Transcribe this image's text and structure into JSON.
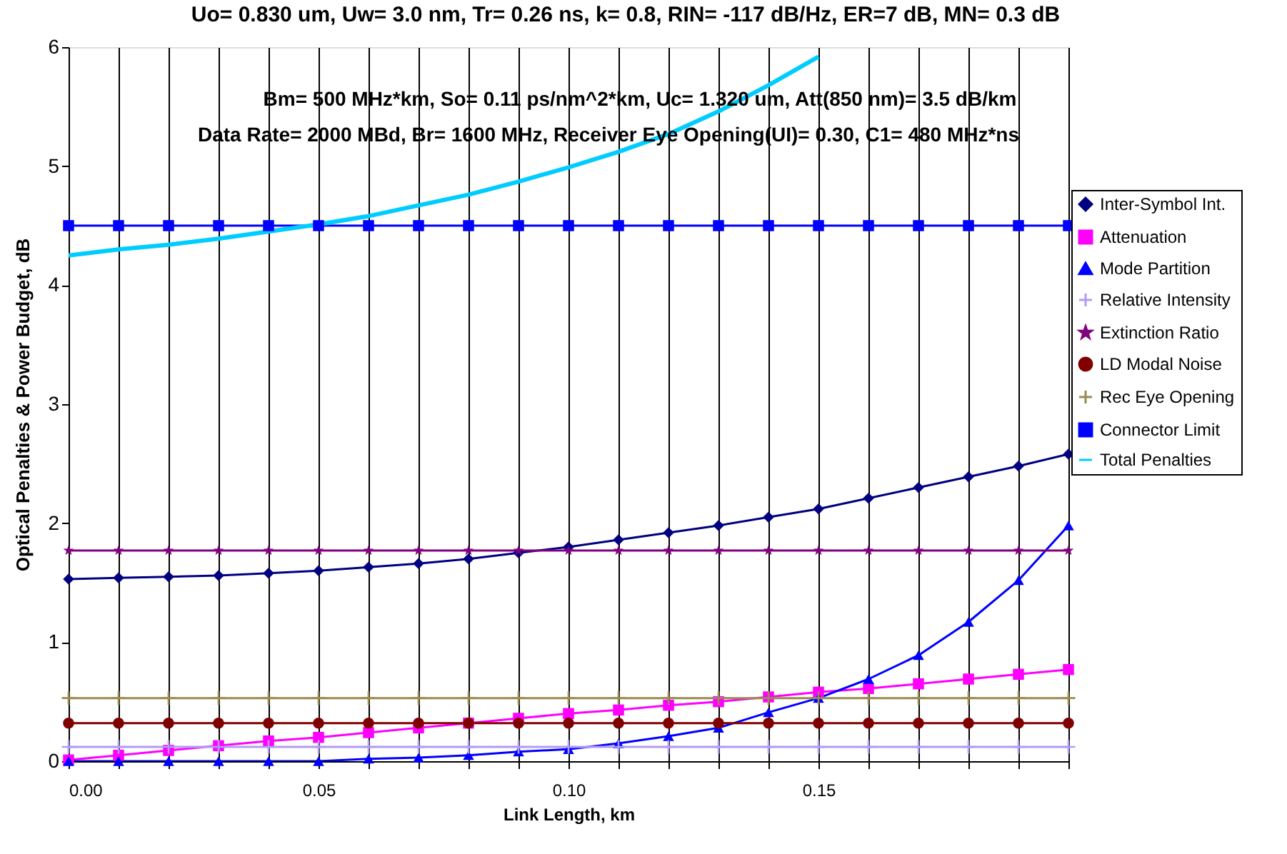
{
  "chart_data": {
    "type": "line",
    "title": "Uo= 0.830 um, Uw= 3.0 nm, Tr= 0.26 ns, k= 0.8, RIN= -117 dB/Hz, ER=7 dB, MN= 0.3 dB",
    "annotations": [
      "Bm= 500 MHz*km, So= 0.11 ps/nm^2*km, Uc= 1.320 um, Att(850 nm)= 3.5 dB/km",
      "Data Rate= 2000 MBd, Br= 1600 MHz, Receiver Eye Opening(UI)= 0.30, C1= 480 MHz*ns"
    ],
    "xlabel": "Link Length, km",
    "ylabel": "Optical Penalties & Power Budget, dB",
    "x": [
      0,
      0.01,
      0.02,
      0.03,
      0.04,
      0.05,
      0.06,
      0.07,
      0.08,
      0.09,
      0.1,
      0.11,
      0.12,
      0.13,
      0.14,
      0.15,
      0.16,
      0.17,
      0.18,
      0.19,
      0.2
    ],
    "xlim": [
      0,
      0.2
    ],
    "ylim": [
      0,
      6
    ],
    "xticks": [
      {
        "value": 0,
        "label": "0.00"
      },
      {
        "value": 0.01,
        "label": null
      },
      {
        "value": 0.02,
        "label": null
      },
      {
        "value": 0.03,
        "label": null
      },
      {
        "value": 0.04,
        "label": null
      },
      {
        "value": 0.05,
        "label": "0.05"
      },
      {
        "value": 0.06,
        "label": null
      },
      {
        "value": 0.07,
        "label": null
      },
      {
        "value": 0.08,
        "label": null
      },
      {
        "value": 0.09,
        "label": null
      },
      {
        "value": 0.1,
        "label": "0.10"
      },
      {
        "value": 0.11,
        "label": null
      },
      {
        "value": 0.12,
        "label": null
      },
      {
        "value": 0.13,
        "label": null
      },
      {
        "value": 0.14,
        "label": null
      },
      {
        "value": 0.15,
        "label": "0.15"
      },
      {
        "value": 0.16,
        "label": null
      },
      {
        "value": 0.17,
        "label": null
      },
      {
        "value": 0.18,
        "label": null
      },
      {
        "value": 0.19,
        "label": null
      },
      {
        "value": 0.2,
        "label": null
      }
    ],
    "yticks": [
      0,
      1,
      2,
      3,
      4,
      5,
      6
    ],
    "grid": "x",
    "legend": "right",
    "series": [
      {
        "name": "Inter-Symbol Int.",
        "color": "#000080",
        "marker": "diamond",
        "values": [
          1.53,
          1.54,
          1.55,
          1.56,
          1.58,
          1.6,
          1.63,
          1.66,
          1.7,
          1.75,
          1.8,
          1.86,
          1.92,
          1.98,
          2.05,
          2.12,
          2.21,
          2.3,
          2.39,
          2.48,
          2.58
        ]
      },
      {
        "name": "Attenuation",
        "color": "#ff00ff",
        "marker": "square",
        "values": [
          0.01,
          0.05,
          0.09,
          0.13,
          0.17,
          0.2,
          0.24,
          0.28,
          0.32,
          0.36,
          0.4,
          0.43,
          0.47,
          0.5,
          0.54,
          0.58,
          0.61,
          0.65,
          0.69,
          0.73,
          0.77
        ]
      },
      {
        "name": "Mode Partition",
        "color": "#0000ff",
        "marker": "triangle",
        "values": [
          0,
          0,
          0,
          0,
          0,
          0,
          0.02,
          0.03,
          0.05,
          0.08,
          0.1,
          0.15,
          0.21,
          0.28,
          0.41,
          0.53,
          0.69,
          0.89,
          1.17,
          1.52,
          1.98
        ]
      },
      {
        "name": "Relative Intensity",
        "color": "#b19cf5",
        "marker": "cross",
        "values": [
          0.12,
          0.12,
          0.12,
          0.12,
          0.12,
          0.12,
          0.12,
          0.12,
          0.12,
          0.12,
          0.12,
          0.12,
          0.12,
          0.12,
          0.12,
          0.12,
          0.12,
          0.12,
          0.12,
          0.12,
          0.12
        ]
      },
      {
        "name": "Extinction Ratio",
        "color": "#800080",
        "marker": "star",
        "values": [
          1.77,
          1.77,
          1.77,
          1.77,
          1.77,
          1.77,
          1.77,
          1.77,
          1.77,
          1.77,
          1.77,
          1.77,
          1.77,
          1.77,
          1.77,
          1.77,
          1.77,
          1.77,
          1.77,
          1.77,
          1.77
        ]
      },
      {
        "name": "LD Modal Noise",
        "color": "#800000",
        "marker": "circle",
        "values": [
          0.32,
          0.32,
          0.32,
          0.32,
          0.32,
          0.32,
          0.32,
          0.32,
          0.32,
          0.32,
          0.32,
          0.32,
          0.32,
          0.32,
          0.32,
          0.32,
          0.32,
          0.32,
          0.32,
          0.32,
          0.32
        ]
      },
      {
        "name": "Rec Eye Opening",
        "color": "#998c50",
        "marker": "cross",
        "values": [
          0.53,
          0.53,
          0.53,
          0.53,
          0.53,
          0.53,
          0.53,
          0.53,
          0.53,
          0.53,
          0.53,
          0.53,
          0.53,
          0.53,
          0.53,
          0.53,
          0.53,
          0.53,
          0.53,
          0.53,
          0.53
        ]
      },
      {
        "name": "Connector Limit",
        "color": "#0000ff",
        "marker": "square",
        "values": [
          4.5,
          4.5,
          4.5,
          4.5,
          4.5,
          4.5,
          4.5,
          4.5,
          4.5,
          4.5,
          4.5,
          4.5,
          4.5,
          4.5,
          4.5,
          4.5,
          4.5,
          4.5,
          4.5,
          4.5,
          4.5
        ]
      },
      {
        "name": "Total Penalties",
        "color": "#00ccff",
        "marker": "none",
        "values": [
          4.25,
          4.3,
          4.34,
          4.39,
          4.45,
          4.51,
          4.58,
          4.67,
          4.76,
          4.87,
          4.99,
          5.12,
          5.27,
          5.46,
          5.68,
          5.92,
          null,
          null,
          null,
          null,
          null
        ]
      }
    ]
  }
}
